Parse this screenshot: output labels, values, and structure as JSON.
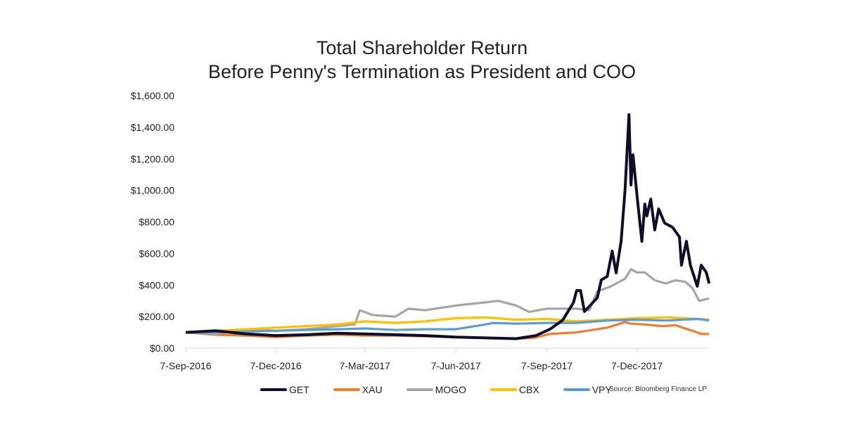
{
  "chart_data": {
    "type": "line",
    "title": "Total Shareholder Return",
    "subtitle": "Before Penny's Termination as President and COO",
    "xlabel": "",
    "ylabel": "",
    "ylim": [
      0,
      1600
    ],
    "yticks": [
      "$0.00",
      "$200.00",
      "$400.00",
      "$600.00",
      "$800.00",
      "$1,000.00",
      "$1,200.00",
      "$1,400.00",
      "$1,600.00"
    ],
    "xticks": [
      {
        "label": "7-Sep-2016",
        "date": "2016-09-07"
      },
      {
        "label": "7-Dec-2016",
        "date": "2016-12-07"
      },
      {
        "label": "7-Mar-2017",
        "date": "2017-03-07"
      },
      {
        "label": "7-Jun-2017",
        "date": "2017-06-07"
      },
      {
        "label": "7-Sep-2017",
        "date": "2017-09-07"
      },
      {
        "label": "7-Dec-2017",
        "date": "2017-12-07"
      }
    ],
    "grid": false,
    "legend": "bottom",
    "source": "Source: Bloomberg Finance LP",
    "series": [
      {
        "name": "XAU",
        "color": "#ED7D31",
        "points": [
          [
            "2016-09-07",
            100
          ],
          [
            "2016-10-07",
            85
          ],
          [
            "2016-11-07",
            80
          ],
          [
            "2016-12-07",
            70
          ],
          [
            "2017-01-07",
            80
          ],
          [
            "2017-02-07",
            85
          ],
          [
            "2017-03-07",
            80
          ],
          [
            "2017-04-07",
            80
          ],
          [
            "2017-05-07",
            75
          ],
          [
            "2017-06-07",
            70
          ],
          [
            "2017-07-07",
            65
          ],
          [
            "2017-08-07",
            60
          ],
          [
            "2017-08-25",
            65
          ],
          [
            "2017-09-10",
            90
          ],
          [
            "2017-10-07",
            100
          ],
          [
            "2017-11-07",
            130
          ],
          [
            "2017-11-25",
            165
          ],
          [
            "2017-12-01",
            155
          ],
          [
            "2017-12-15",
            150
          ],
          [
            "2018-01-01",
            140
          ],
          [
            "2018-01-15",
            145
          ],
          [
            "2018-02-01",
            110
          ],
          [
            "2018-02-10",
            90
          ],
          [
            "2018-02-18",
            90
          ]
        ]
      },
      {
        "name": "MOGO",
        "color": "#A5A5A5",
        "points": [
          [
            "2016-09-07",
            100
          ],
          [
            "2016-10-07",
            90
          ],
          [
            "2016-11-07",
            120
          ],
          [
            "2016-12-07",
            110
          ],
          [
            "2017-01-07",
            120
          ],
          [
            "2017-02-07",
            140
          ],
          [
            "2017-02-25",
            150
          ],
          [
            "2017-03-02",
            240
          ],
          [
            "2017-03-15",
            210
          ],
          [
            "2017-04-07",
            200
          ],
          [
            "2017-04-20",
            250
          ],
          [
            "2017-05-07",
            240
          ],
          [
            "2017-06-07",
            270
          ],
          [
            "2017-07-07",
            290
          ],
          [
            "2017-07-20",
            300
          ],
          [
            "2017-08-07",
            270
          ],
          [
            "2017-08-20",
            230
          ],
          [
            "2017-09-07",
            250
          ],
          [
            "2017-10-07",
            250
          ],
          [
            "2017-10-20",
            240
          ],
          [
            "2017-10-28",
            360
          ],
          [
            "2017-11-10",
            390
          ],
          [
            "2017-11-25",
            440
          ],
          [
            "2017-12-01",
            500
          ],
          [
            "2017-12-07",
            480
          ],
          [
            "2017-12-15",
            480
          ],
          [
            "2017-12-25",
            430
          ],
          [
            "2018-01-05",
            410
          ],
          [
            "2018-01-15",
            430
          ],
          [
            "2018-01-25",
            420
          ],
          [
            "2018-02-01",
            380
          ],
          [
            "2018-02-08",
            300
          ],
          [
            "2018-02-18",
            315
          ]
        ]
      },
      {
        "name": "CBX",
        "color": "#FFC000",
        "points": [
          [
            "2016-09-07",
            100
          ],
          [
            "2016-10-07",
            110
          ],
          [
            "2016-11-07",
            120
          ],
          [
            "2016-12-07",
            130
          ],
          [
            "2017-01-07",
            140
          ],
          [
            "2017-02-07",
            150
          ],
          [
            "2017-03-07",
            170
          ],
          [
            "2017-04-07",
            160
          ],
          [
            "2017-05-07",
            170
          ],
          [
            "2017-06-07",
            190
          ],
          [
            "2017-07-07",
            195
          ],
          [
            "2017-08-07",
            180
          ],
          [
            "2017-09-07",
            185
          ],
          [
            "2017-10-07",
            170
          ],
          [
            "2017-11-07",
            180
          ],
          [
            "2017-12-07",
            190
          ],
          [
            "2018-01-07",
            195
          ],
          [
            "2018-02-07",
            185
          ],
          [
            "2018-02-18",
            180
          ]
        ]
      },
      {
        "name": "VPY",
        "color": "#5B9BD5",
        "points": [
          [
            "2016-09-07",
            100
          ],
          [
            "2016-10-07",
            100
          ],
          [
            "2016-11-07",
            105
          ],
          [
            "2016-12-07",
            110
          ],
          [
            "2017-01-07",
            115
          ],
          [
            "2017-02-07",
            120
          ],
          [
            "2017-03-07",
            125
          ],
          [
            "2017-04-07",
            115
          ],
          [
            "2017-05-07",
            120
          ],
          [
            "2017-06-07",
            120
          ],
          [
            "2017-07-07",
            150
          ],
          [
            "2017-07-15",
            160
          ],
          [
            "2017-08-07",
            155
          ],
          [
            "2017-09-07",
            160
          ],
          [
            "2017-10-07",
            160
          ],
          [
            "2017-11-07",
            175
          ],
          [
            "2017-12-07",
            180
          ],
          [
            "2018-01-07",
            175
          ],
          [
            "2018-02-07",
            185
          ],
          [
            "2018-02-18",
            175
          ]
        ]
      },
      {
        "name": "GET",
        "color": "#0E0E2C",
        "points": [
          [
            "2016-09-07",
            100
          ],
          [
            "2016-10-07",
            110
          ],
          [
            "2016-11-07",
            90
          ],
          [
            "2016-12-07",
            80
          ],
          [
            "2017-01-07",
            85
          ],
          [
            "2017-02-07",
            95
          ],
          [
            "2017-03-07",
            90
          ],
          [
            "2017-04-07",
            85
          ],
          [
            "2017-05-07",
            80
          ],
          [
            "2017-06-07",
            70
          ],
          [
            "2017-07-07",
            65
          ],
          [
            "2017-08-07",
            60
          ],
          [
            "2017-08-27",
            80
          ],
          [
            "2017-09-10",
            120
          ],
          [
            "2017-09-23",
            178
          ],
          [
            "2017-10-04",
            290
          ],
          [
            "2017-10-07",
            365
          ],
          [
            "2017-10-11",
            365
          ],
          [
            "2017-10-15",
            232
          ],
          [
            "2017-10-28",
            320
          ],
          [
            "2017-11-01",
            432
          ],
          [
            "2017-11-07",
            455
          ],
          [
            "2017-11-12",
            615
          ],
          [
            "2017-11-16",
            477
          ],
          [
            "2017-11-21",
            677
          ],
          [
            "2017-11-25",
            1003
          ],
          [
            "2017-11-29",
            1480
          ],
          [
            "2017-12-01",
            1034
          ],
          [
            "2017-12-03",
            1225
          ],
          [
            "2017-12-07",
            971
          ],
          [
            "2017-12-12",
            677
          ],
          [
            "2017-12-15",
            913
          ],
          [
            "2017-12-17",
            838
          ],
          [
            "2017-12-21",
            945
          ],
          [
            "2017-12-25",
            749
          ],
          [
            "2017-12-29",
            882
          ],
          [
            "2018-01-04",
            793
          ],
          [
            "2018-01-12",
            766
          ],
          [
            "2018-01-19",
            704
          ],
          [
            "2018-01-21",
            526
          ],
          [
            "2018-01-26",
            677
          ],
          [
            "2018-01-30",
            526
          ],
          [
            "2018-02-06",
            392
          ],
          [
            "2018-02-10",
            526
          ],
          [
            "2018-02-15",
            481
          ],
          [
            "2018-02-18",
            410
          ]
        ]
      }
    ],
    "legend_order": [
      "GET",
      "XAU",
      "MOGO",
      "CBX",
      "VPY"
    ]
  }
}
